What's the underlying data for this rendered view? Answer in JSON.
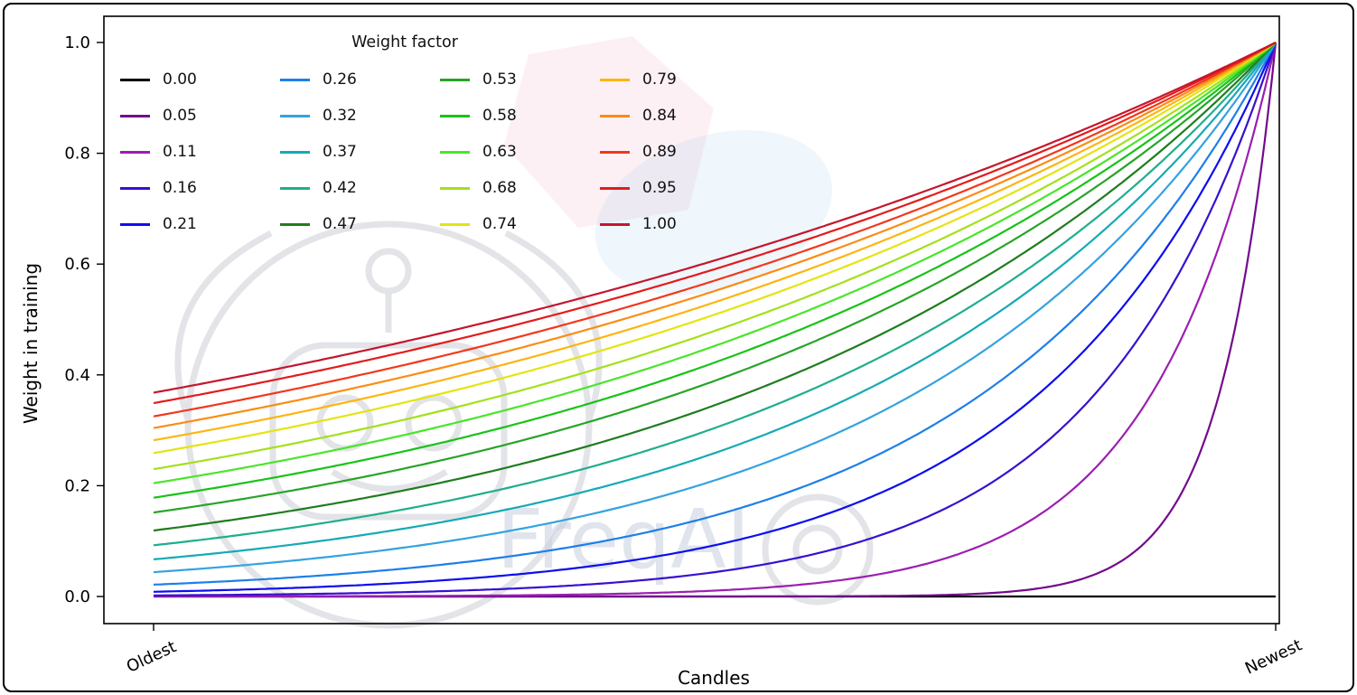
{
  "figure": {
    "watermark_text": "FreqAI"
  },
  "chart_data": {
    "type": "line",
    "title": "",
    "xlabel": "Candles",
    "ylabel": "Weight in training",
    "x_tick_labels": [
      "Oldest",
      "Newest"
    ],
    "y_ticks": [
      "0.0",
      "0.2",
      "0.4",
      "0.6",
      "0.8",
      "1.0"
    ],
    "xlim_normalized": [
      0,
      1
    ],
    "ylim": [
      0,
      1
    ],
    "grid": false,
    "legend_title": "Weight factor",
    "legend_position": "upper left",
    "legend_columns": 4,
    "legend_fill_order": "column-major",
    "formula": "weight(x) = exp(-(1 - x) / factor), x in [0,1] from oldest to newest candle; factor 0.00 is flat at 0",
    "series": [
      {
        "label": "0.00",
        "factor": 0.0,
        "color": "#000000"
      },
      {
        "label": "0.05",
        "factor": 0.05,
        "color": "#730a8c"
      },
      {
        "label": "0.11",
        "factor": 0.11,
        "color": "#9b1fb0"
      },
      {
        "label": "0.16",
        "factor": 0.16,
        "color": "#3810cf"
      },
      {
        "label": "0.21",
        "factor": 0.21,
        "color": "#0d0df0"
      },
      {
        "label": "0.26",
        "factor": 0.26,
        "color": "#1e7fe8"
      },
      {
        "label": "0.32",
        "factor": 0.32,
        "color": "#35a2e0"
      },
      {
        "label": "0.37",
        "factor": 0.37,
        "color": "#16aab4"
      },
      {
        "label": "0.42",
        "factor": 0.42,
        "color": "#1fae8d"
      },
      {
        "label": "0.47",
        "factor": 0.47,
        "color": "#1e7d1e"
      },
      {
        "label": "0.53",
        "factor": 0.53,
        "color": "#28a428"
      },
      {
        "label": "0.58",
        "factor": 0.58,
        "color": "#17c317"
      },
      {
        "label": "0.63",
        "factor": 0.63,
        "color": "#49e52b"
      },
      {
        "label": "0.68",
        "factor": 0.68,
        "color": "#a4e01c"
      },
      {
        "label": "0.74",
        "factor": 0.74,
        "color": "#e4e412"
      },
      {
        "label": "0.79",
        "factor": 0.79,
        "color": "#fdb511"
      },
      {
        "label": "0.84",
        "factor": 0.84,
        "color": "#fb8c14"
      },
      {
        "label": "0.89",
        "factor": 0.89,
        "color": "#f2371d"
      },
      {
        "label": "0.95",
        "factor": 0.95,
        "color": "#e41b1b"
      },
      {
        "label": "1.00",
        "factor": 1.0,
        "color": "#c4162d"
      }
    ]
  }
}
